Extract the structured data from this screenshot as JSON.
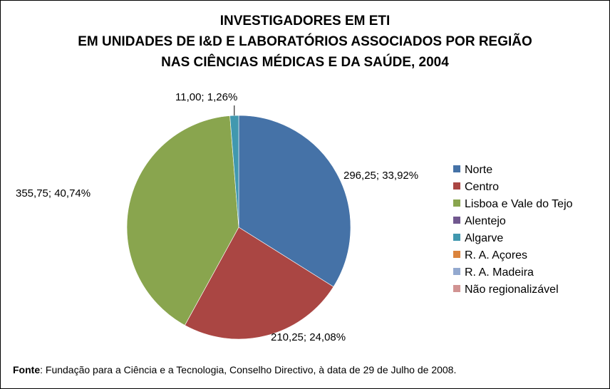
{
  "chart_data": {
    "type": "pie",
    "title": [
      "INVESTIGADORES EM ETI",
      "EM UNIDADES DE I&D E LABORATÓRIOS ASSOCIADOS POR REGIÃO",
      "NAS CIÊNCIAS MÉDICAS E DA SAÚDE, 2004"
    ],
    "categories": [
      "Norte",
      "Centro",
      "Lisboa e Vale do Tejo",
      "Alentejo",
      "Algarve",
      "R. A. Açores",
      "R. A. Madeira",
      "Não regionalizável"
    ],
    "values": [
      296.25,
      210.25,
      355.75,
      0,
      11.0,
      0,
      0,
      0
    ],
    "percentages": [
      33.92,
      24.08,
      40.74,
      0,
      1.26,
      0,
      0,
      0
    ],
    "colors": [
      "#4572A7",
      "#AA4643",
      "#89A54E",
      "#71588F",
      "#4198AF",
      "#DB843D",
      "#93A9CF",
      "#D19392"
    ],
    "data_labels": {
      "Norte": "296,25; 33,92%",
      "Centro": "210,25; 24,08%",
      "Lisboa e Vale do Tejo": "355,75; 40,74%",
      "Algarve": "11,00; 1,26%"
    },
    "legend_position": "right"
  },
  "source": {
    "label": "Fonte",
    "text": ": Fundação para a Ciência e a Tecnologia, Conselho Directivo, à data de 29 de Julho de 2008."
  }
}
